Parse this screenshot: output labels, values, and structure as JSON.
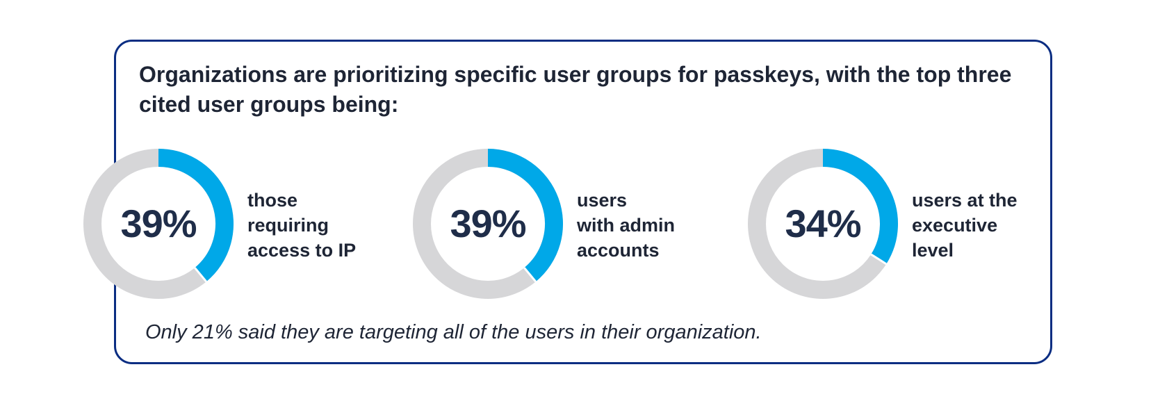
{
  "headline": "Organizations are prioritizing specific user groups for passkeys, with the top three cited user groups being:",
  "footnote": "Only 21% said they are targeting all of the users in their organization.",
  "colors": {
    "border": "#0a2d82",
    "filled": "#00a8e8",
    "track": "#d6d6d8",
    "text": "#1e2535"
  },
  "chart_data": {
    "type": "pie",
    "title": "Organizations are prioritizing specific user groups for passkeys, with the top three cited user groups being:",
    "categories": [
      "those requiring access to IP",
      "users with admin accounts",
      "users at the executive level"
    ],
    "values": [
      39,
      39,
      34
    ],
    "unit": "%",
    "items": [
      {
        "display": "39%",
        "value": 39,
        "label": "those\nrequiring\naccess to IP"
      },
      {
        "display": "39%",
        "value": 39,
        "label": "users\nwith admin\naccounts"
      },
      {
        "display": "34%",
        "value": 34,
        "label": "users at the\nexecutive\nlevel"
      }
    ]
  }
}
